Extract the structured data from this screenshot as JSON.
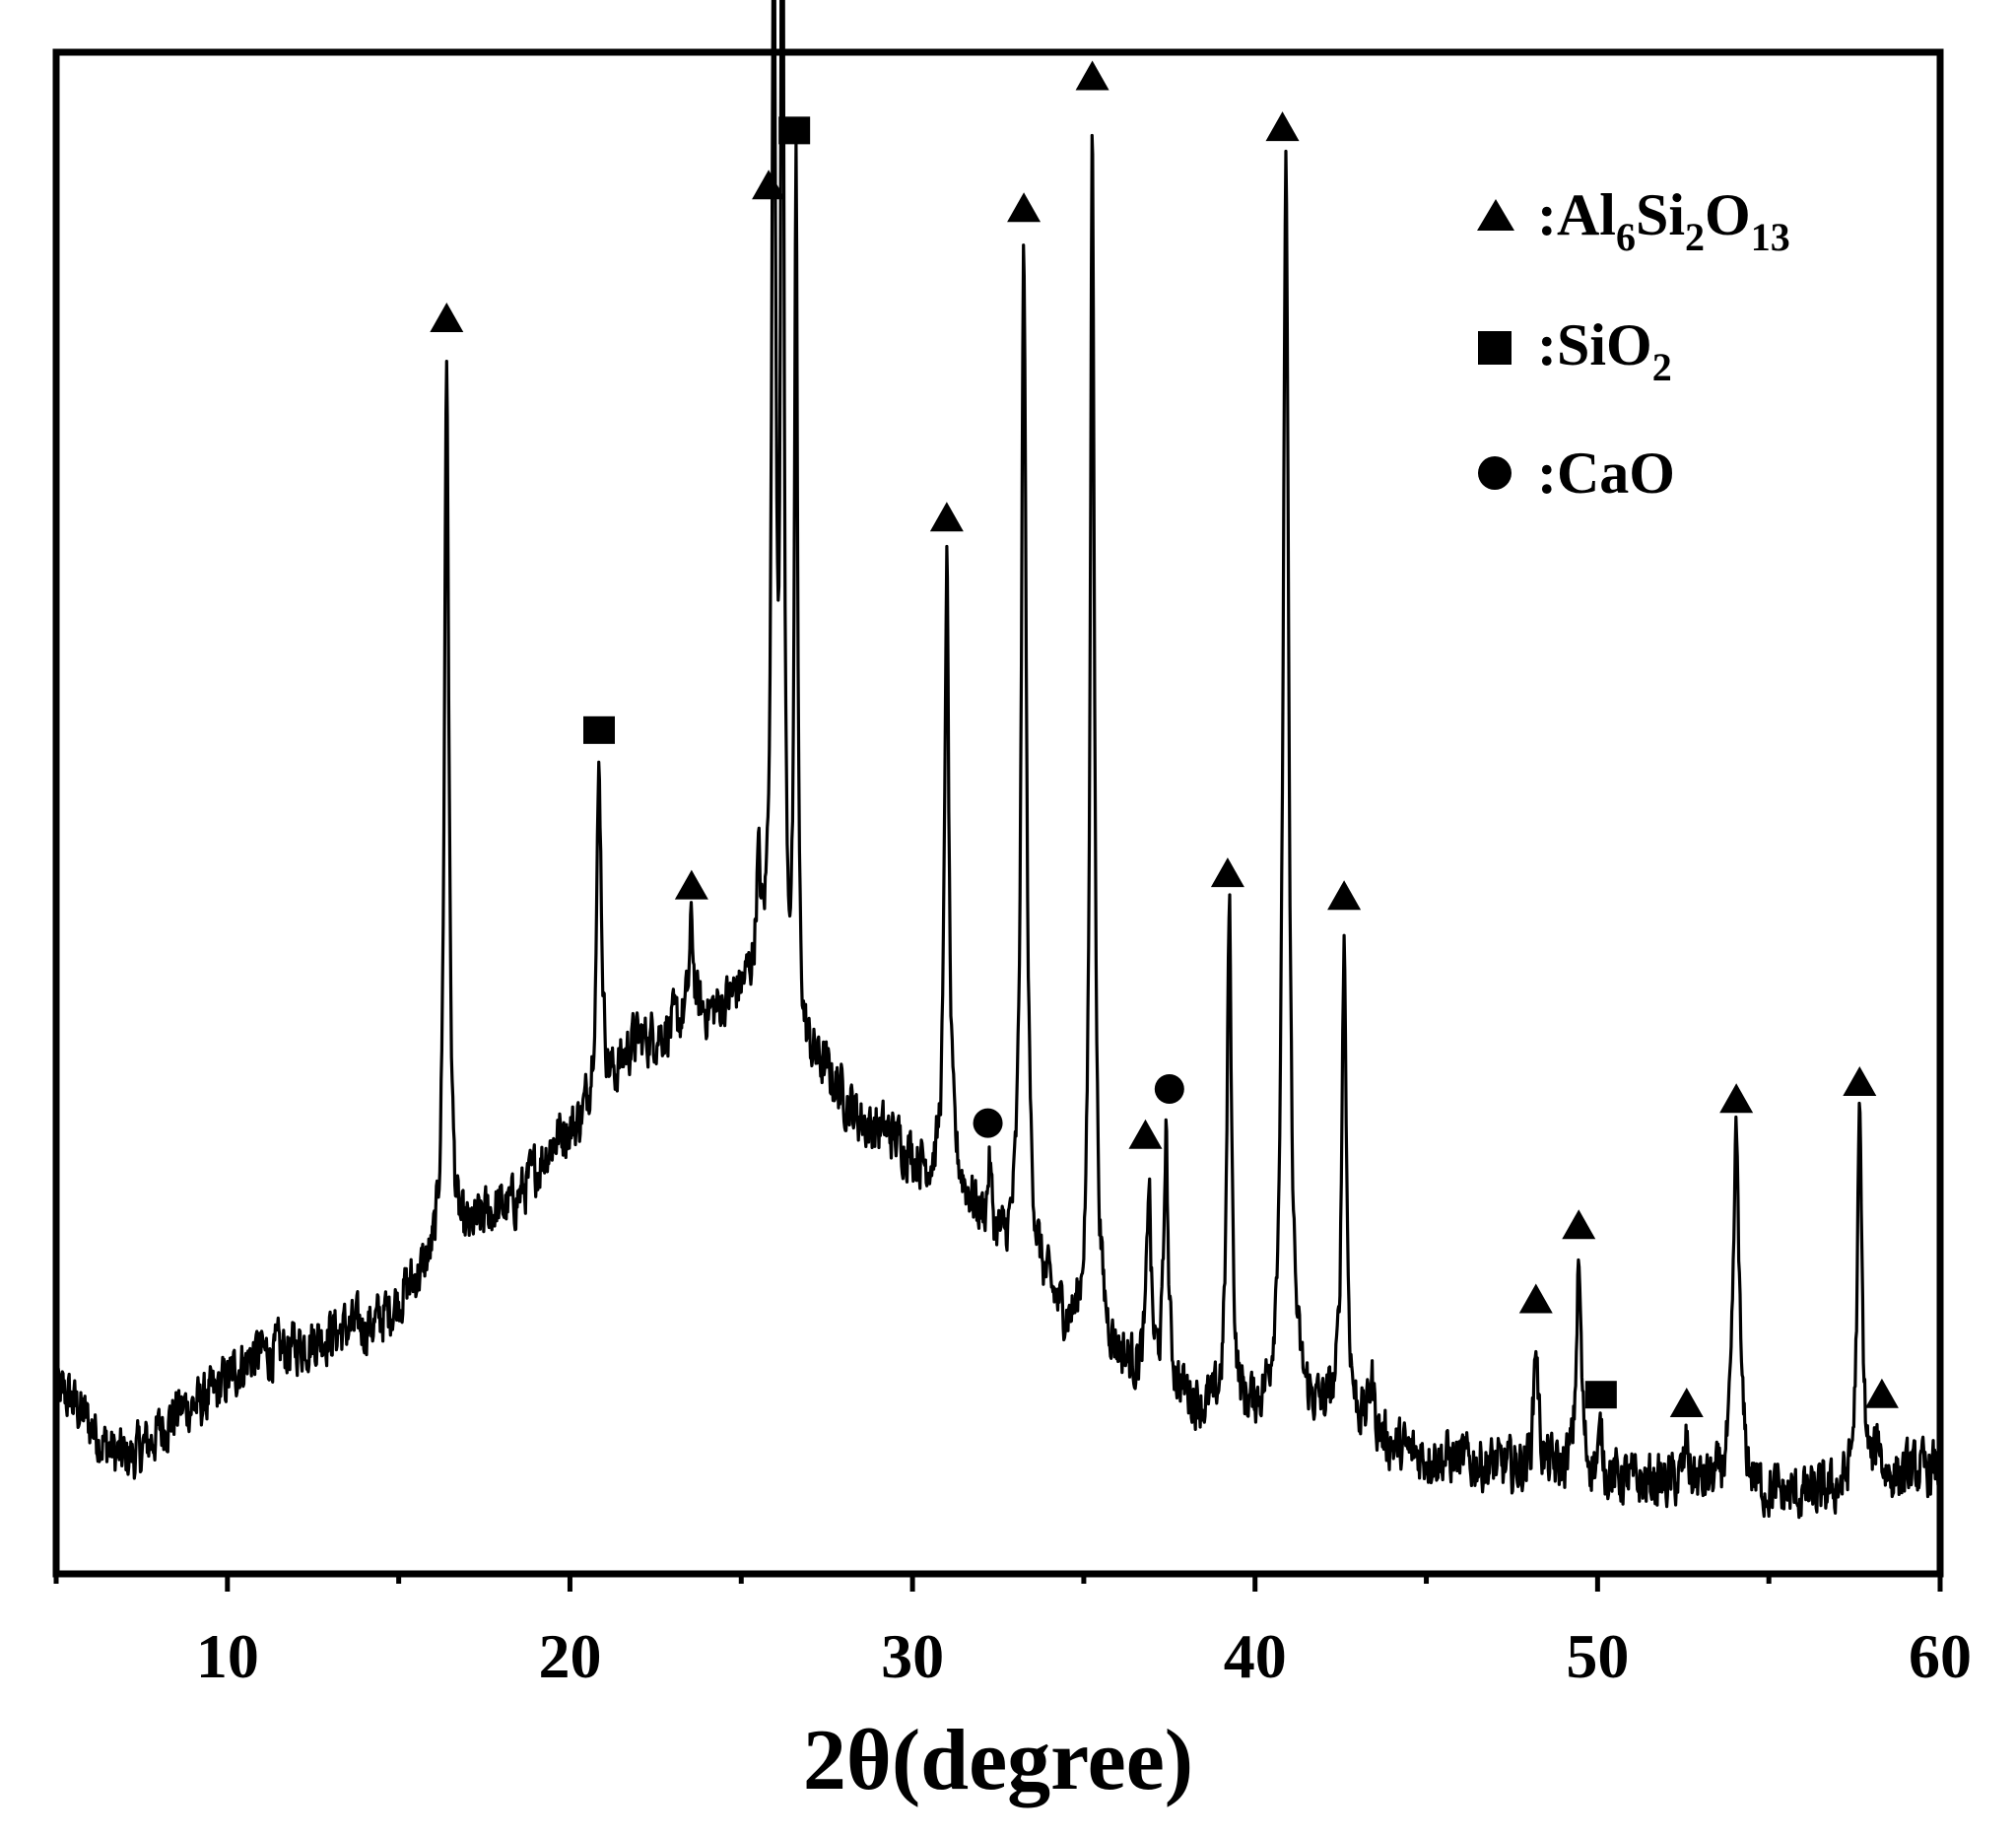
{
  "chart_data": {
    "type": "line",
    "title": "",
    "xlabel": "2θ(degree)",
    "ylabel": "",
    "xlim": [
      5,
      60
    ],
    "x_ticks": [
      10,
      20,
      30,
      40,
      50,
      60
    ],
    "y_ticks_shown": false,
    "grid": false,
    "legend_position": "top-right",
    "line_color": "#000000",
    "legend": [
      {
        "marker": "triangle",
        "label": ":Al",
        "parts": [
          ":Al",
          "6",
          "Si",
          "2",
          "O",
          "13"
        ]
      },
      {
        "marker": "square",
        "label": ":SiO",
        "parts": [
          ":SiO",
          "2"
        ]
      },
      {
        "marker": "circle",
        "label": ":CaO",
        "parts": [
          ":CaO"
        ]
      }
    ],
    "background": [
      [
        5.0,
        0.1
      ],
      [
        7.0,
        0.05
      ],
      [
        9.0,
        0.09
      ],
      [
        11.0,
        0.13
      ],
      [
        14.0,
        0.15
      ],
      [
        16.0,
        0.19
      ],
      [
        18.0,
        0.24
      ],
      [
        20.0,
        0.3
      ],
      [
        21.0,
        0.33
      ],
      [
        22.0,
        0.37
      ],
      [
        24.0,
        0.39
      ],
      [
        25.4,
        0.41
      ],
      [
        27.0,
        0.35
      ],
      [
        29.0,
        0.3
      ],
      [
        31.0,
        0.26
      ],
      [
        33.0,
        0.2
      ],
      [
        35.0,
        0.14
      ],
      [
        37.0,
        0.11
      ],
      [
        39.0,
        0.08
      ],
      [
        42.0,
        0.08
      ],
      [
        45.0,
        0.05
      ],
      [
        48.0,
        0.04
      ],
      [
        52.0,
        0.03
      ],
      [
        56.0,
        0.02
      ],
      [
        60.0,
        0.04
      ]
    ],
    "peaks": [
      {
        "x": 16.4,
        "height": 0.7,
        "width": 0.16
      },
      {
        "x": 20.85,
        "height": 0.25,
        "width": 0.17
      },
      {
        "x": 23.55,
        "height": 0.07,
        "width": 0.15
      },
      {
        "x": 25.5,
        "height": 0.08,
        "width": 0.15
      },
      {
        "x": 25.95,
        "height": 0.86,
        "width": 0.14
      },
      {
        "x": 26.2,
        "height": 1.15,
        "width": 0.09
      },
      {
        "x": 26.6,
        "height": 0.68,
        "width": 0.1
      },
      {
        "x": 31.0,
        "height": 0.48,
        "width": 0.15
      },
      {
        "x": 32.25,
        "height": 0.05,
        "width": 0.14
      },
      {
        "x": 33.25,
        "height": 0.78,
        "width": 0.17
      },
      {
        "x": 35.25,
        "height": 0.94,
        "width": 0.15
      },
      {
        "x": 36.9,
        "height": 0.15,
        "width": 0.14
      },
      {
        "x": 37.4,
        "height": 0.19,
        "width": 0.14
      },
      {
        "x": 39.25,
        "height": 0.39,
        "width": 0.16
      },
      {
        "x": 40.9,
        "height": 0.96,
        "width": 0.2
      },
      {
        "x": 42.6,
        "height": 0.37,
        "width": 0.16
      },
      {
        "x": 43.4,
        "height": 0.04,
        "width": 0.18
      },
      {
        "x": 48.2,
        "height": 0.1,
        "width": 0.16
      },
      {
        "x": 49.45,
        "height": 0.16,
        "width": 0.17
      },
      {
        "x": 50.1,
        "height": 0.03,
        "width": 0.15
      },
      {
        "x": 52.6,
        "height": 0.03,
        "width": 0.15
      },
      {
        "x": 54.05,
        "height": 0.27,
        "width": 0.22
      },
      {
        "x": 57.65,
        "height": 0.28,
        "width": 0.17
      },
      {
        "x": 58.2,
        "height": 0.03,
        "width": 0.15
      }
    ],
    "noise_amplitude": 0.035,
    "markers": [
      {
        "phase": "Al6Si2O13",
        "marker": "triangle",
        "x": 16.4
      },
      {
        "phase": "SiO2",
        "marker": "square",
        "x": 20.85
      },
      {
        "phase": "Al6Si2O13",
        "marker": "triangle",
        "x": 23.55
      },
      {
        "phase": "Al6Si2O13",
        "marker": "triangle",
        "x": 25.8
      },
      {
        "phase": "Al6Si2O13",
        "marker": "triangle",
        "x": 26.2
      },
      {
        "phase": "SiO2",
        "marker": "square",
        "x": 26.55
      },
      {
        "phase": "Al6Si2O13",
        "marker": "triangle",
        "x": 31.0
      },
      {
        "phase": "CaO",
        "marker": "circle",
        "x": 32.2
      },
      {
        "phase": "Al6Si2O13",
        "marker": "triangle",
        "x": 33.25
      },
      {
        "phase": "Al6Si2O13",
        "marker": "triangle",
        "x": 35.25
      },
      {
        "phase": "Al6Si2O13",
        "marker": "triangle",
        "x": 36.8
      },
      {
        "phase": "CaO",
        "marker": "circle",
        "x": 37.5
      },
      {
        "phase": "Al6Si2O13",
        "marker": "triangle",
        "x": 39.2
      },
      {
        "phase": "Al6Si2O13",
        "marker": "triangle",
        "x": 40.8
      },
      {
        "phase": "Al6Si2O13",
        "marker": "triangle",
        "x": 42.6
      },
      {
        "phase": "Al6Si2O13",
        "marker": "triangle",
        "x": 48.2
      },
      {
        "phase": "Al6Si2O13",
        "marker": "triangle",
        "x": 49.45
      },
      {
        "phase": "SiO2",
        "marker": "square",
        "x": 50.1
      },
      {
        "phase": "Al6Si2O13",
        "marker": "triangle",
        "x": 52.6
      },
      {
        "phase": "Al6Si2O13",
        "marker": "triangle",
        "x": 54.05
      },
      {
        "phase": "Al6Si2O13",
        "marker": "triangle",
        "x": 57.65
      },
      {
        "phase": "Al6Si2O13",
        "marker": "triangle",
        "x": 58.3
      }
    ]
  }
}
